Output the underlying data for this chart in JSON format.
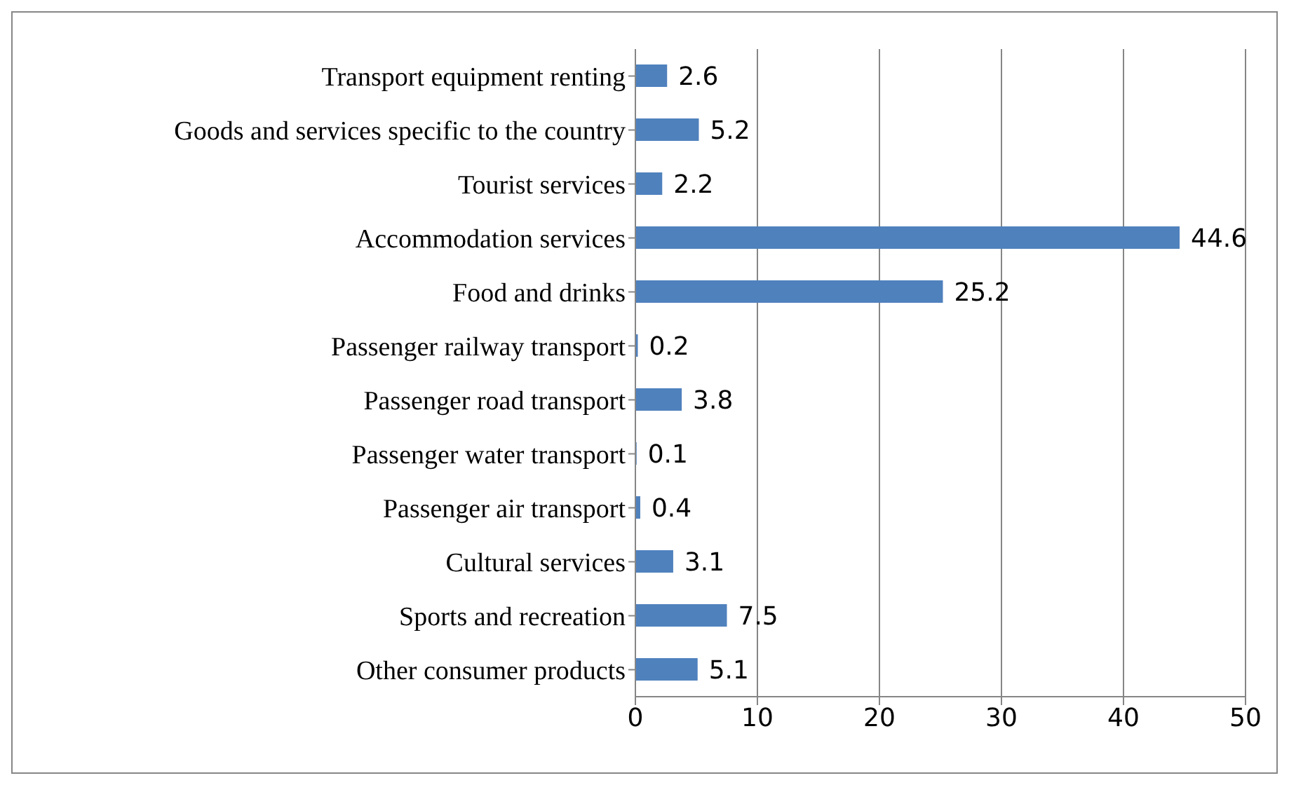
{
  "chart_data": {
    "type": "bar",
    "orientation": "horizontal",
    "categories": [
      "Transport equipment renting",
      "Goods and services specific to the country",
      "Tourist services",
      "Accommodation services",
      "Food and drinks",
      "Passenger railway transport",
      "Passenger road transport",
      "Passenger water transport",
      "Passenger air transport",
      "Cultural services",
      "Sports and recreation",
      "Other consumer products"
    ],
    "values": [
      2.6,
      5.2,
      2.2,
      44.6,
      25.2,
      0.2,
      3.8,
      0.1,
      0.4,
      3.1,
      7.5,
      5.1
    ],
    "color": "#4f81bd",
    "xlim": [
      0,
      50
    ],
    "xticks": [
      0,
      10,
      20,
      30,
      40,
      50
    ],
    "grid": "x",
    "data_labels": true
  }
}
